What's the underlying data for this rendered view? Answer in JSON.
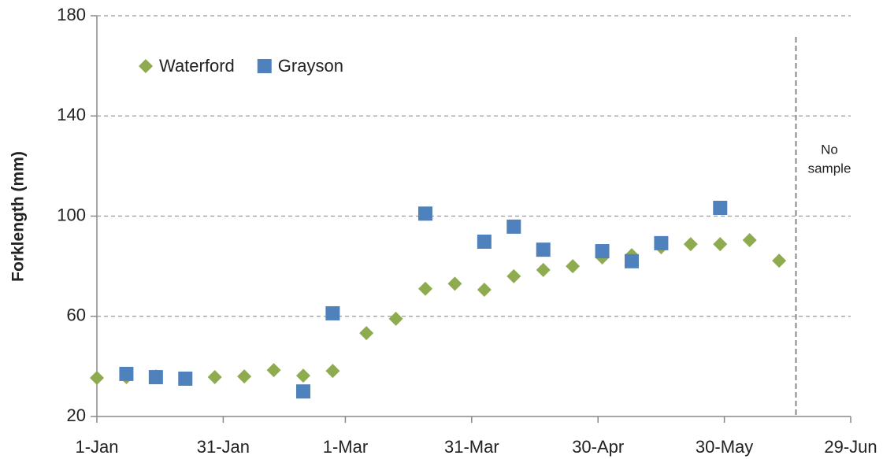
{
  "chart_data": {
    "type": "scatter",
    "y_label": "Forklength (mm)",
    "xlim": [
      0,
      179
    ],
    "ylim": [
      20,
      180
    ],
    "xticks": [
      {
        "value": 0,
        "label": "1-Jan"
      },
      {
        "value": 30,
        "label": "31-Jan"
      },
      {
        "value": 59,
        "label": "1-Mar"
      },
      {
        "value": 89,
        "label": "31-Mar"
      },
      {
        "value": 119,
        "label": "30-Apr"
      },
      {
        "value": 149,
        "label": "30-May"
      },
      {
        "value": 179,
        "label": "29-Jun"
      }
    ],
    "yticks": [
      20,
      60,
      100,
      140,
      180
    ],
    "grid": true,
    "legend": "upper-left",
    "series": [
      {
        "name": "Waterford",
        "color": "#8eac4f",
        "marker": "diamond",
        "x": [
          0,
          7,
          14,
          28,
          35,
          42,
          49,
          56,
          64,
          71,
          78,
          85,
          92,
          99,
          106,
          113,
          120,
          127,
          134,
          141,
          148,
          155,
          162
        ],
        "values": [
          35.4,
          35.7,
          36,
          35.7,
          36,
          38.5,
          36.3,
          38.2,
          53.3,
          59,
          71,
          73,
          70.6,
          76,
          78.5,
          80,
          83.5,
          84.4,
          87.6,
          88.8,
          88.8,
          90.4,
          82.2
        ]
      },
      {
        "name": "Grayson",
        "color": "#4f81bd",
        "marker": "square",
        "x": [
          7,
          14,
          21,
          49,
          56,
          78,
          92,
          99,
          106,
          120,
          127,
          134,
          148
        ],
        "values": [
          37,
          35.7,
          35.1,
          30,
          61.2,
          101,
          89.8,
          95.8,
          86.6,
          86,
          82,
          89.2,
          103.3
        ]
      }
    ],
    "vline": {
      "x": 166,
      "text_lines": [
        "No",
        "sample"
      ]
    }
  }
}
